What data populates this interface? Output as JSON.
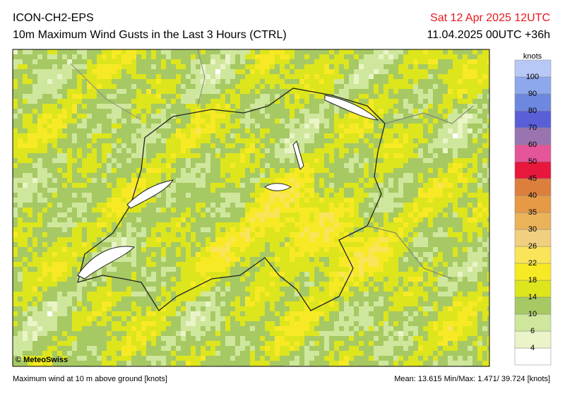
{
  "header": {
    "model": "ICON-CH2-EPS",
    "title": "10m Maximum Wind Gusts in the Last 3 Hours (CTRL)",
    "valid_time": "Sat 12 Apr 2025 12UTC",
    "run_time": "11.04.2025 00UTC +36h"
  },
  "map": {
    "copyright": "© MeteoSwiss"
  },
  "colorbar": {
    "unit": "knots",
    "ticks": [
      4,
      6,
      10,
      14,
      18,
      22,
      26,
      30,
      35,
      40,
      45,
      50,
      60,
      70,
      80,
      90,
      100
    ],
    "colors": [
      "#ffffff",
      "#eaf4c8",
      "#cfe79c",
      "#a6c964",
      "#dde51c",
      "#f7ea25",
      "#f9e45a",
      "#f0cf7e",
      "#eab35a",
      "#e79a45",
      "#dd7f3c",
      "#e8173c",
      "#e4559a",
      "#9a74b0",
      "#5a5fd8",
      "#6e88e0",
      "#8ea8ee",
      "#b8c8f6"
    ]
  },
  "footer": {
    "description": "Maximum wind at 10 m above ground [knots]",
    "stats": "Mean:  13.615 Min/Max:  1.471/ 39.724 [knots]"
  }
}
